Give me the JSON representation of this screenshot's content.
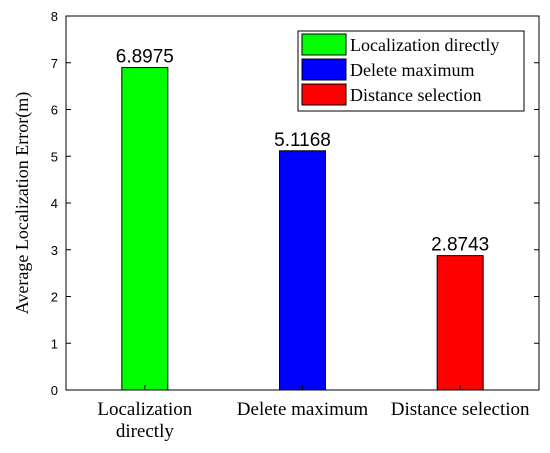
{
  "chart_data": {
    "type": "bar",
    "categories": [
      [
        "Localization",
        "directly"
      ],
      [
        "Delete maximum"
      ],
      [
        "Distance selection"
      ]
    ],
    "values": [
      6.8975,
      5.1168,
      2.8743
    ],
    "data_labels": [
      "6.8975",
      "5.1168",
      "2.8743"
    ],
    "colors": [
      "#00ff00",
      "#0000ff",
      "#ff0000"
    ],
    "legend": {
      "placement": "top-right",
      "entries": [
        "Localization directly",
        "Delete maximum",
        "Distance selection"
      ]
    },
    "ylabel": "Average Localization Error(m)",
    "xlabel": "",
    "ylim": [
      0,
      8
    ],
    "yticks": [
      "0",
      "1",
      "2",
      "3",
      "4",
      "5",
      "6",
      "7",
      "8"
    ],
    "grid": false
  }
}
